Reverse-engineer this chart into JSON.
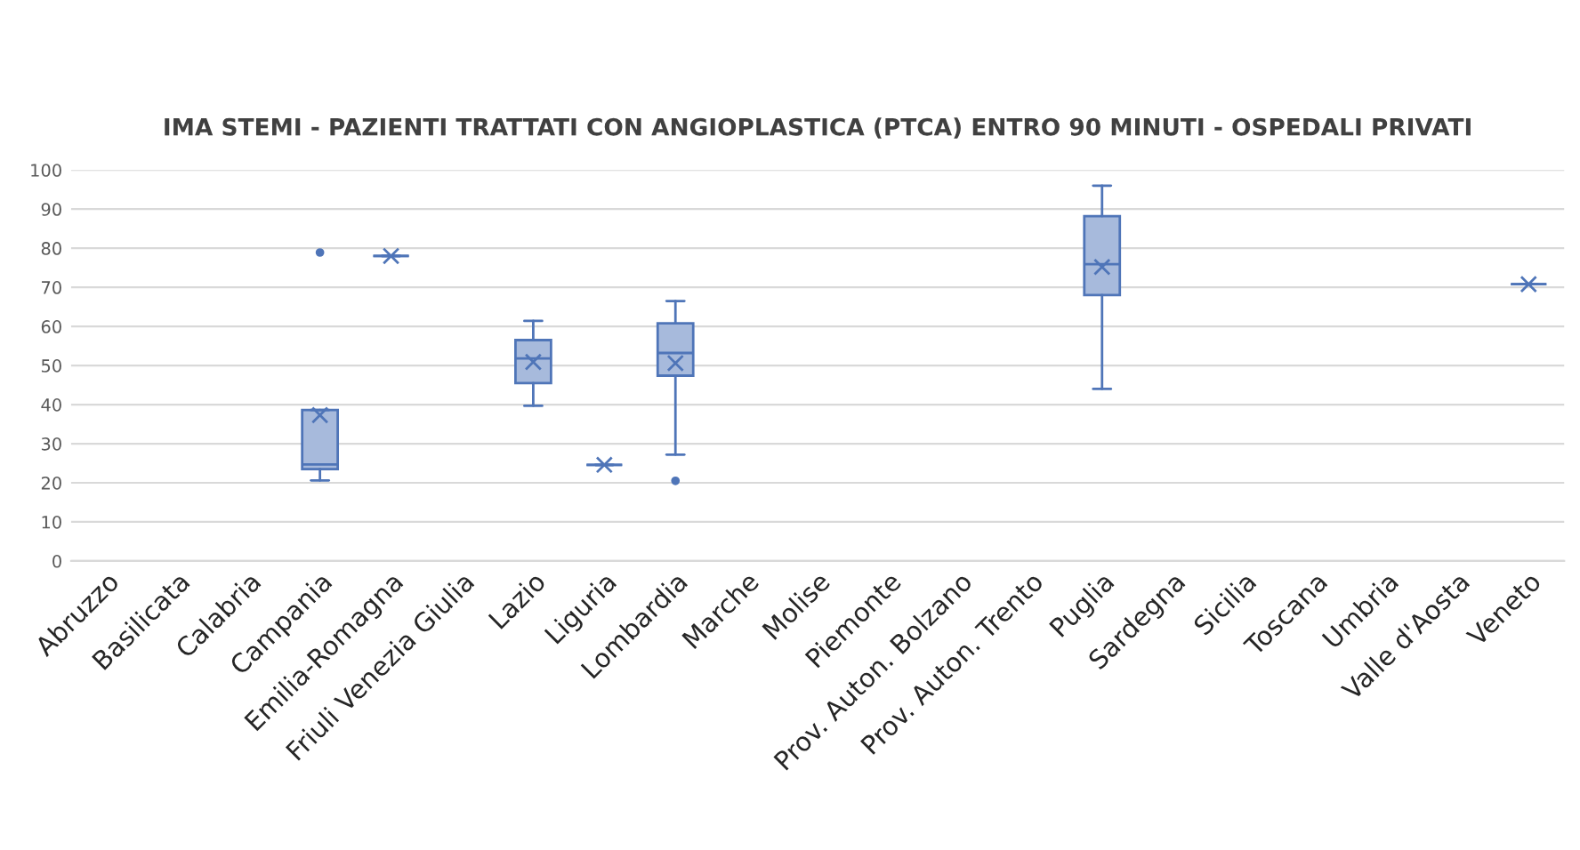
{
  "chart_data": {
    "type": "box",
    "title": "IMA STEMI - PAZIENTI TRATTATI CON ANGIOPLASTICA (PTCA) ENTRO 90 MINUTI - OSPEDALI PRIVATI",
    "categories": [
      "Abruzzo",
      "Basilicata",
      "Calabria",
      "Campania",
      "Emilia-Romagna",
      "Friuli Venezia Giulia",
      "Lazio",
      "Liguria",
      "Lombardia",
      "Marche",
      "Molise",
      "Piemonte",
      "Prov. Auton. Bolzano",
      "Prov. Auton. Trento",
      "Puglia",
      "Sardegna",
      "Sicilia",
      "Toscana",
      "Umbria",
      "Valle d'Aosta",
      "Veneto"
    ],
    "boxes": [
      null,
      null,
      null,
      {
        "low": 20.6,
        "q1": 23.5,
        "median": 24.7,
        "q3": 38.6,
        "high": 38.6,
        "mean": 37.3,
        "outliers": [
          78.9
        ]
      },
      {
        "low": 78,
        "q1": 78,
        "median": 78,
        "q3": 78,
        "high": 78,
        "mean": 78
      },
      null,
      {
        "low": 39.7,
        "q1": 45.5,
        "median": 51.8,
        "q3": 56.5,
        "high": 61.4,
        "mean": 50.9
      },
      {
        "low": 24.6,
        "q1": 24.6,
        "median": 24.6,
        "q3": 24.6,
        "high": 24.6,
        "mean": 24.6
      },
      {
        "low": 27.2,
        "q1": 47.4,
        "median": 53.2,
        "q3": 60.8,
        "high": 66.5,
        "mean": 50.6,
        "outliers": [
          20.5
        ]
      },
      null,
      null,
      null,
      null,
      null,
      {
        "low": 44.0,
        "q1": 68.0,
        "median": 75.9,
        "q3": 88.2,
        "high": 96.0,
        "mean": 75.2
      },
      null,
      null,
      null,
      null,
      null,
      {
        "low": 70.8,
        "q1": 70.8,
        "median": 70.8,
        "q3": 70.8,
        "high": 70.8,
        "mean": 70.8
      }
    ],
    "color": "#4f75b8",
    "ylim": [
      0,
      100
    ],
    "yticks": [
      0,
      10,
      20,
      30,
      40,
      50,
      60,
      70,
      80,
      90,
      100
    ],
    "grid": "y",
    "legend": false
  }
}
